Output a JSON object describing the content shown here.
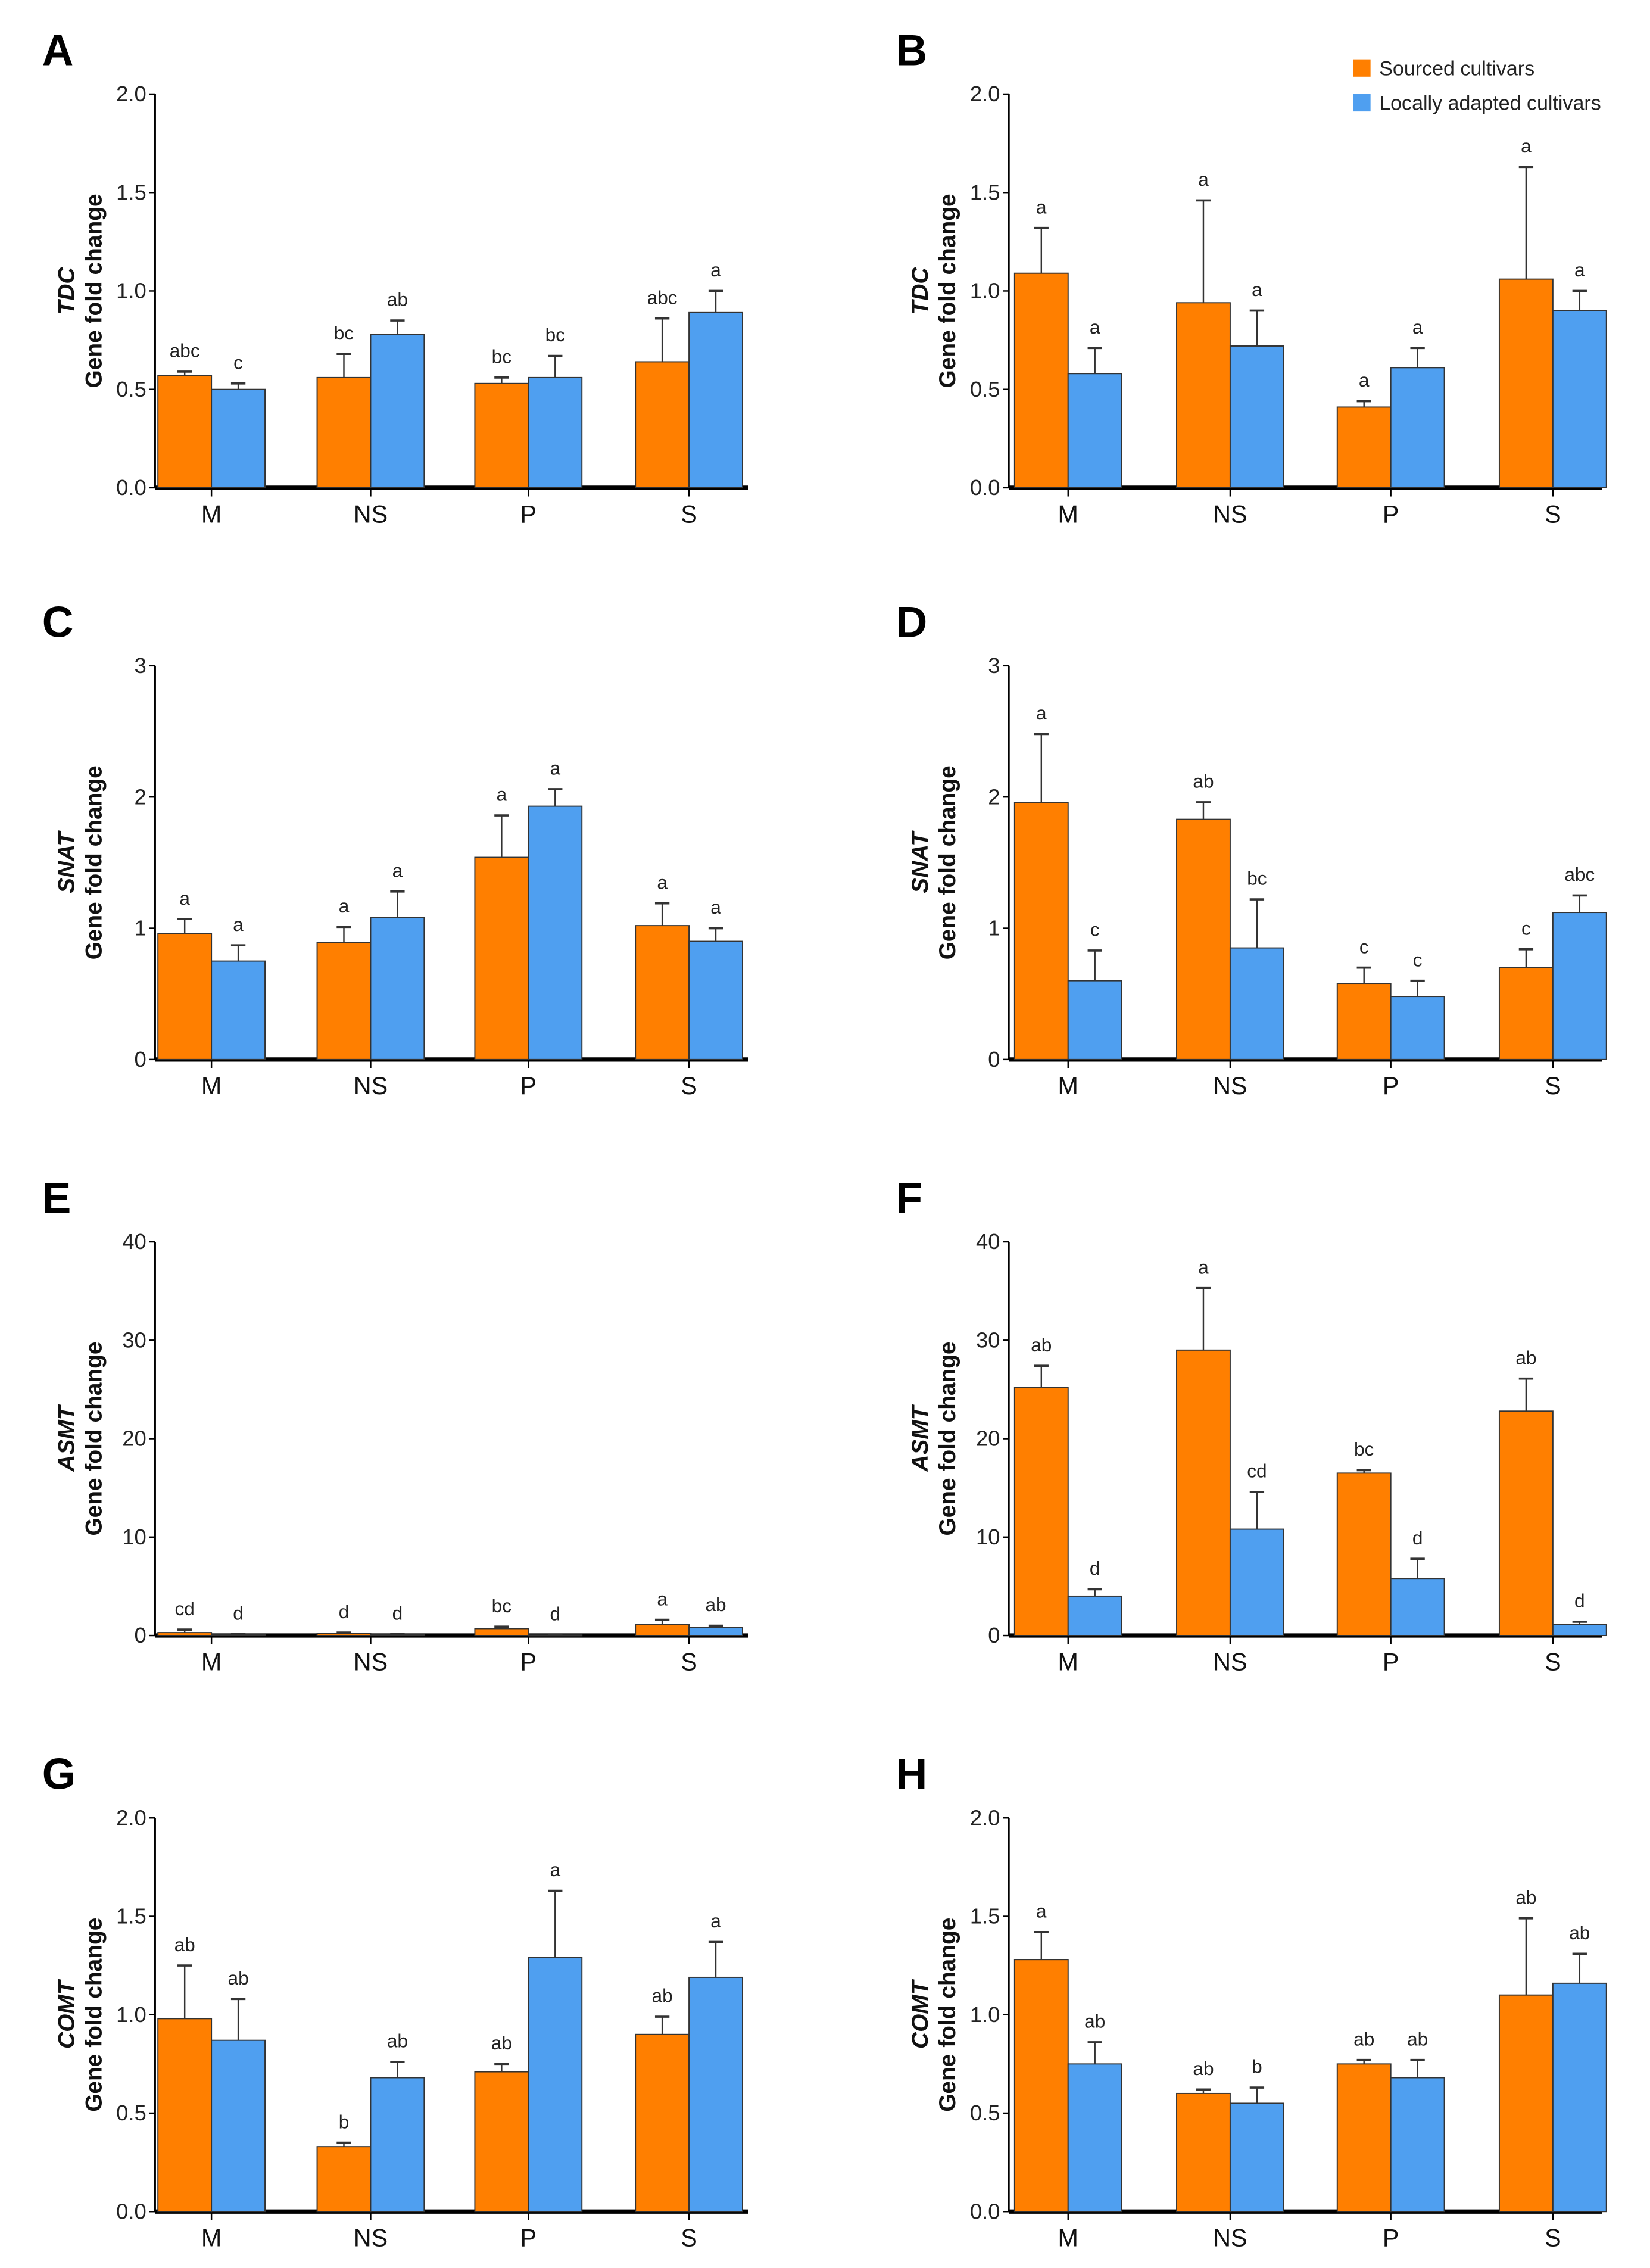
{
  "legend": {
    "sourced": "Sourced cultivars",
    "local": "Locally adapted cultivars"
  },
  "colors": {
    "sourced": "#ff7f00",
    "local": "#4f9ff0"
  },
  "chart_data": [
    {
      "type": "bar",
      "panel": "A",
      "gene": "TDC",
      "ylabel": "Gene fold change",
      "ylim": [
        0,
        2
      ],
      "ticks": [
        "0.0",
        "0.5",
        "1.0",
        "1.5",
        "2.0"
      ],
      "categories": [
        "M",
        "NS",
        "P",
        "S"
      ],
      "series": [
        {
          "name": "Sourced cultivars",
          "values": [
            0.57,
            0.56,
            0.53,
            0.64
          ],
          "errors": [
            0.02,
            0.12,
            0.03,
            0.22
          ],
          "letters": [
            "abc",
            "bc",
            "bc",
            "abc"
          ]
        },
        {
          "name": "Locally adapted cultivars",
          "values": [
            0.5,
            0.78,
            0.56,
            0.89
          ],
          "errors": [
            0.03,
            0.07,
            0.11,
            0.11
          ],
          "letters": [
            "c",
            "ab",
            "bc",
            "a"
          ]
        }
      ]
    },
    {
      "type": "bar",
      "panel": "B",
      "gene": "TDC",
      "ylabel": "Gene fold change",
      "ylim": [
        0,
        2
      ],
      "ticks": [
        "0.0",
        "0.5",
        "1.0",
        "1.5",
        "2.0"
      ],
      "categories": [
        "M",
        "NS",
        "P",
        "S"
      ],
      "series": [
        {
          "name": "Sourced cultivars",
          "values": [
            1.09,
            0.94,
            0.41,
            1.06
          ],
          "errors": [
            0.23,
            0.52,
            0.03,
            0.57
          ],
          "letters": [
            "a",
            "a",
            "a",
            "a"
          ]
        },
        {
          "name": "Locally adapted cultivars",
          "values": [
            0.58,
            0.72,
            0.61,
            0.9
          ],
          "errors": [
            0.13,
            0.18,
            0.1,
            0.1
          ],
          "letters": [
            "a",
            "a",
            "a",
            "a"
          ]
        }
      ]
    },
    {
      "type": "bar",
      "panel": "C",
      "gene": "SNAT",
      "ylabel": "Gene fold change",
      "ylim": [
        0,
        3
      ],
      "ticks": [
        "0",
        "1",
        "2",
        "3"
      ],
      "categories": [
        "M",
        "NS",
        "P",
        "S"
      ],
      "series": [
        {
          "name": "Sourced cultivars",
          "values": [
            0.96,
            0.89,
            1.54,
            1.02
          ],
          "errors": [
            0.11,
            0.12,
            0.32,
            0.17
          ],
          "letters": [
            "a",
            "a",
            "a",
            "a"
          ]
        },
        {
          "name": "Locally adapted cultivars",
          "values": [
            0.75,
            1.08,
            1.93,
            0.9
          ],
          "errors": [
            0.12,
            0.2,
            0.13,
            0.1
          ],
          "letters": [
            "a",
            "a",
            "a",
            "a"
          ]
        }
      ]
    },
    {
      "type": "bar",
      "panel": "D",
      "gene": "SNAT",
      "ylabel": "Gene fold change",
      "ylim": [
        0,
        3
      ],
      "ticks": [
        "0",
        "1",
        "2",
        "3"
      ],
      "categories": [
        "M",
        "NS",
        "P",
        "S"
      ],
      "series": [
        {
          "name": "Sourced cultivars",
          "values": [
            1.96,
            1.83,
            0.58,
            0.7
          ],
          "errors": [
            0.52,
            0.13,
            0.12,
            0.14
          ],
          "letters": [
            "a",
            "ab",
            "c",
            "c"
          ]
        },
        {
          "name": "Locally adapted cultivars",
          "values": [
            0.6,
            0.85,
            0.48,
            1.12
          ],
          "errors": [
            0.23,
            0.37,
            0.12,
            0.13
          ],
          "letters": [
            "c",
            "bc",
            "c",
            "abc"
          ]
        }
      ]
    },
    {
      "type": "bar",
      "panel": "E",
      "gene": "ASMT",
      "ylabel": "Gene fold change",
      "ylim": [
        0,
        40
      ],
      "ticks": [
        "0",
        "10",
        "20",
        "30",
        "40"
      ],
      "categories": [
        "M",
        "NS",
        "P",
        "S"
      ],
      "series": [
        {
          "name": "Sourced cultivars",
          "values": [
            0.3,
            0.2,
            0.7,
            1.1
          ],
          "errors": [
            0.3,
            0.1,
            0.2,
            0.5
          ],
          "letters": [
            "cd",
            "d",
            "bc",
            "a"
          ]
        },
        {
          "name": "Locally adapted cultivars",
          "values": [
            0.1,
            0.1,
            0.05,
            0.8
          ],
          "errors": [
            0.05,
            0.05,
            0.02,
            0.2
          ],
          "letters": [
            "d",
            "d",
            "d",
            "ab"
          ]
        }
      ]
    },
    {
      "type": "bar",
      "panel": "F",
      "gene": "ASMT",
      "ylabel": "Gene fold change",
      "ylim": [
        0,
        40
      ],
      "ticks": [
        "0",
        "10",
        "20",
        "30",
        "40"
      ],
      "categories": [
        "M",
        "NS",
        "P",
        "S"
      ],
      "series": [
        {
          "name": "Sourced cultivars",
          "values": [
            25.2,
            29.0,
            16.5,
            22.8
          ],
          "errors": [
            2.2,
            6.3,
            0.3,
            3.3
          ],
          "letters": [
            "ab",
            "a",
            "bc",
            "ab"
          ]
        },
        {
          "name": "Locally adapted cultivars",
          "values": [
            4.0,
            10.8,
            5.8,
            1.1
          ],
          "errors": [
            0.7,
            3.8,
            2.0,
            0.3
          ],
          "letters": [
            "d",
            "cd",
            "d",
            "d"
          ]
        }
      ]
    },
    {
      "type": "bar",
      "panel": "G",
      "gene": "COMT",
      "ylabel": "Gene fold change",
      "ylim": [
        0,
        2
      ],
      "ticks": [
        "0.0",
        "0.5",
        "1.0",
        "1.5",
        "2.0"
      ],
      "categories": [
        "M",
        "NS",
        "P",
        "S"
      ],
      "series": [
        {
          "name": "Sourced cultivars",
          "values": [
            0.98,
            0.33,
            0.71,
            0.9
          ],
          "errors": [
            0.27,
            0.02,
            0.04,
            0.09
          ],
          "letters": [
            "ab",
            "b",
            "ab",
            "ab"
          ]
        },
        {
          "name": "Locally adapted cultivars",
          "values": [
            0.87,
            0.68,
            1.29,
            1.19
          ],
          "errors": [
            0.21,
            0.08,
            0.34,
            0.18
          ],
          "letters": [
            "ab",
            "ab",
            "a",
            "a"
          ]
        }
      ]
    },
    {
      "type": "bar",
      "panel": "H",
      "gene": "COMT",
      "ylabel": "Gene fold change",
      "ylim": [
        0,
        2
      ],
      "ticks": [
        "0.0",
        "0.5",
        "1.0",
        "1.5",
        "2.0"
      ],
      "categories": [
        "M",
        "NS",
        "P",
        "S"
      ],
      "series": [
        {
          "name": "Sourced cultivars",
          "values": [
            1.28,
            0.6,
            0.75,
            1.1
          ],
          "errors": [
            0.14,
            0.02,
            0.02,
            0.39
          ],
          "letters": [
            "a",
            "ab",
            "ab",
            "ab"
          ]
        },
        {
          "name": "Locally adapted cultivars",
          "values": [
            0.75,
            0.55,
            0.68,
            1.16
          ],
          "errors": [
            0.11,
            0.08,
            0.09,
            0.15
          ],
          "letters": [
            "ab",
            "b",
            "ab",
            "ab"
          ]
        }
      ]
    }
  ]
}
